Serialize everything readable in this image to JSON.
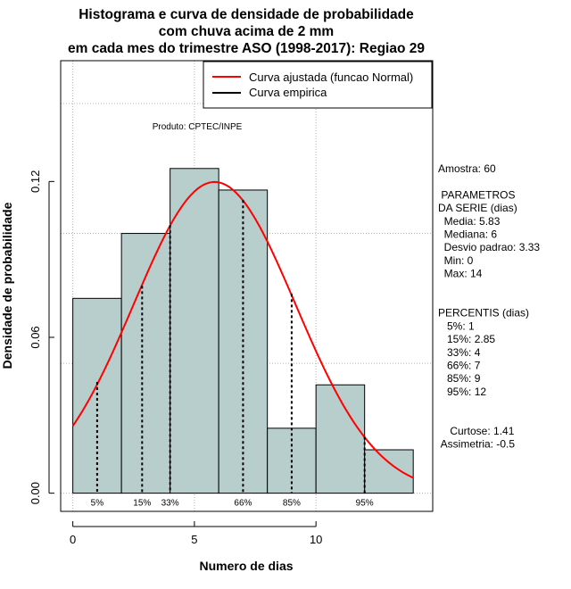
{
  "chart_data": {
    "type": "histogram",
    "title_lines": [
      "Histograma e curva de densidade de probabilidade",
      "com chuva acima de 2 mm",
      "em cada mes do trimestre ASO (1998-2017): Regiao 29"
    ],
    "xlabel": "Numero de dias",
    "ylabel": "Densidade de probabilidade",
    "xlim": [
      -0.5,
      14.8
    ],
    "ylim": [
      -0.007,
      0.1665
    ],
    "x_ticks": [
      0,
      5,
      10
    ],
    "y_ticks": [
      0.0,
      0.06,
      0.12
    ],
    "y_tick_labels": [
      "0.00",
      "0.06",
      "0.12"
    ],
    "grid_x": [
      0,
      5,
      10
    ],
    "grid_y": [
      0.0,
      0.05,
      0.1,
      0.15
    ],
    "bins": [
      {
        "start": 0,
        "end": 2,
        "density": 0.075
      },
      {
        "start": 2,
        "end": 4,
        "density": 0.1
      },
      {
        "start": 4,
        "end": 6,
        "density": 0.125
      },
      {
        "start": 6,
        "end": 8,
        "density": 0.1167
      },
      {
        "start": 8,
        "end": 10,
        "density": 0.025
      },
      {
        "start": 10,
        "end": 12,
        "density": 0.0417
      },
      {
        "start": 12,
        "end": 14,
        "density": 0.0167
      }
    ],
    "bar_color": "#b7cecd",
    "normal_curve": {
      "mean": 5.83,
      "sd": 3.33,
      "x_range": [
        0,
        14
      ],
      "color": "#ff0000"
    },
    "percentiles": [
      {
        "label": "5%",
        "x": 1,
        "density": 0.0428
      },
      {
        "label": "15%",
        "x": 2.85,
        "density": 0.0798
      },
      {
        "label": "33%",
        "x": 4,
        "density": 0.1032
      },
      {
        "label": "66%",
        "x": 7,
        "density": 0.1128
      },
      {
        "label": "85%",
        "x": 9,
        "density": 0.0767
      },
      {
        "label": "95%",
        "x": 12,
        "density": 0.0217
      }
    ],
    "legend": [
      {
        "label": "Curva ajustada (funcao Normal)",
        "color": "#ff0000"
      },
      {
        "label": "Curva empirica",
        "color": "#000000"
      }
    ],
    "legend_position": "top-right",
    "product_label": "Produto: CPTEC/INPE",
    "side_stats": [
      "Amostra: 60",
      "",
      " PARAMETROS",
      "DA SERIE (dias)",
      "  Media: 5.83",
      "  Mediana: 6",
      "  Desvio padrao: 3.33",
      "  Min: 0",
      "  Max: 14",
      "",
      "",
      "PERCENTIS (dias)",
      "   5%: 1",
      "   15%: 2.85",
      "   33%: 4",
      "   66%: 7",
      "   85%: 9",
      "   95%: 12",
      "",
      "",
      "    Curtose: 1.41",
      " Assimetria: -0.5"
    ]
  }
}
